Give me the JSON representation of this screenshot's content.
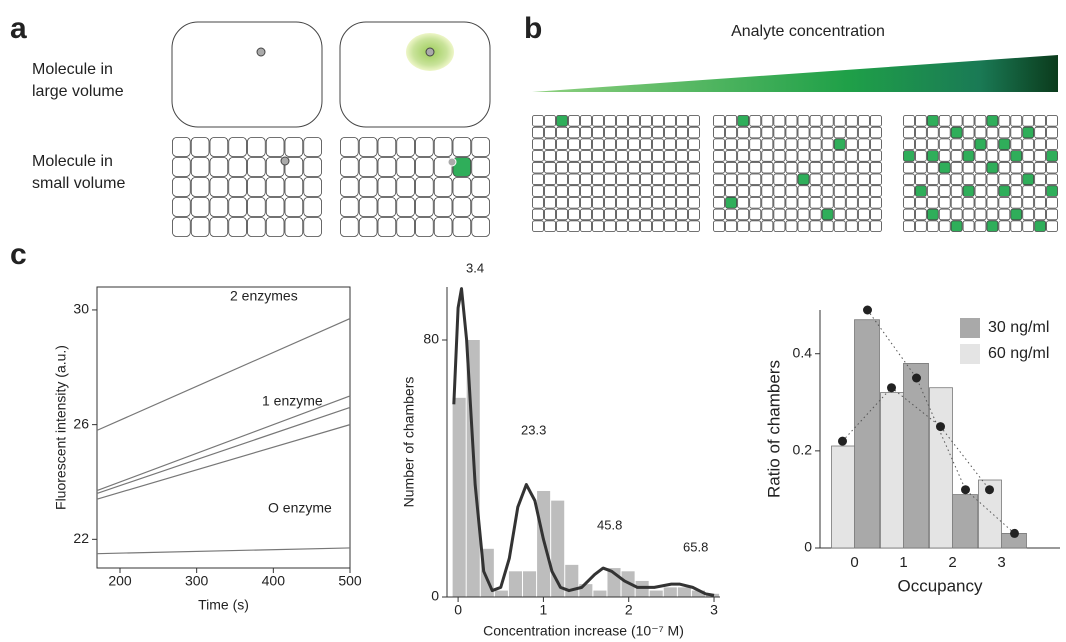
{
  "panels": {
    "a": {
      "label": "a",
      "large": [
        "Molecule in",
        "large volume"
      ],
      "small": [
        "Molecule in",
        "small volume"
      ]
    },
    "b": {
      "label": "b",
      "title": "Analyte concentration"
    },
    "c": {
      "label": "c"
    }
  },
  "chart_data": [
    {
      "type": "line",
      "xlabel": "Time (s)",
      "ylabel": "Fluorescent intensity (a.u.)",
      "xlim": [
        170,
        500
      ],
      "ylim": [
        21.0,
        30.8
      ],
      "xticks": [
        200,
        300,
        400,
        500
      ],
      "yticks": [
        22,
        26,
        30
      ],
      "series": [
        {
          "name": "2 enzymes",
          "color": "#777777",
          "x": [
            170,
            500
          ],
          "values": [
            25.8,
            29.7
          ]
        },
        {
          "name": "1 enzyme",
          "color": "#777777",
          "x": [
            170,
            500
          ],
          "values": [
            23.7,
            27.0
          ]
        },
        {
          "color": "#777777",
          "x": [
            170,
            500
          ],
          "values": [
            23.6,
            26.6
          ]
        },
        {
          "color": "#777777",
          "x": [
            170,
            500
          ],
          "values": [
            23.4,
            26.0
          ]
        },
        {
          "name": "O enzyme",
          "color": "#777777",
          "x": [
            170,
            500
          ],
          "values": [
            21.5,
            21.7
          ]
        }
      ]
    },
    {
      "type": "histogram",
      "xlabel": "Concentration increase (10⁻⁷ M)",
      "ylabel": "Number of chambers",
      "xlim": [
        -0.13,
        3.07
      ],
      "ylim": [
        0,
        96.5
      ],
      "xticks": [
        0,
        1,
        2,
        3
      ],
      "yticks": [
        0,
        80
      ],
      "color": "#bdbdbd",
      "bins": [
        -0.07,
        0.095,
        0.26,
        0.425,
        0.59,
        0.755,
        0.92,
        1.085,
        1.25,
        1.415,
        1.58,
        1.745,
        1.91,
        2.075,
        2.24,
        2.405,
        2.57,
        2.735,
        2.9,
        3.065
      ],
      "counts": [
        62,
        80,
        15,
        2,
        8,
        8,
        33,
        30,
        10,
        4,
        2,
        9,
        8,
        5,
        2,
        3,
        3,
        2,
        1
      ],
      "curve": {
        "color": "#333333",
        "x": [
          -0.05,
          0,
          0.04,
          0.1,
          0.2,
          0.3,
          0.4,
          0.5,
          0.6,
          0.7,
          0.8,
          0.9,
          1.0,
          1.1,
          1.2,
          1.3,
          1.45,
          1.6,
          1.7,
          1.8,
          1.95,
          2.1,
          2.3,
          2.5,
          2.6,
          2.75,
          2.9,
          3.0
        ],
        "values": [
          60,
          90,
          96,
          80,
          35,
          8,
          2,
          3,
          12,
          28,
          35,
          30,
          18,
          8,
          3,
          2,
          3,
          7,
          9,
          8,
          5,
          3,
          3,
          4,
          4,
          3,
          1,
          0.5
        ]
      },
      "annotations": [
        "3.4",
        "23.3",
        "45.8",
        "65.8"
      ]
    },
    {
      "type": "bar",
      "xlabel": "Occupancy",
      "ylabel": "Ratio of chambers",
      "categories": [
        "0",
        "1",
        "2",
        "3"
      ],
      "ylim": [
        0,
        0.49
      ],
      "yticks": [
        0,
        0.2,
        0.4
      ],
      "legend": "upper right",
      "series": [
        {
          "name": "30 ng/ml",
          "color": "#a9a9a9",
          "values": [
            0.47,
            0.38,
            0.11,
            0.03
          ],
          "fit": [
            0.49,
            0.35,
            0.12,
            0.03
          ]
        },
        {
          "name": "60 ng/ml",
          "color": "#e4e4e4",
          "values": [
            0.21,
            0.32,
            0.33,
            0.14
          ],
          "fit": [
            0.22,
            0.33,
            0.25,
            0.12
          ]
        }
      ]
    }
  ]
}
